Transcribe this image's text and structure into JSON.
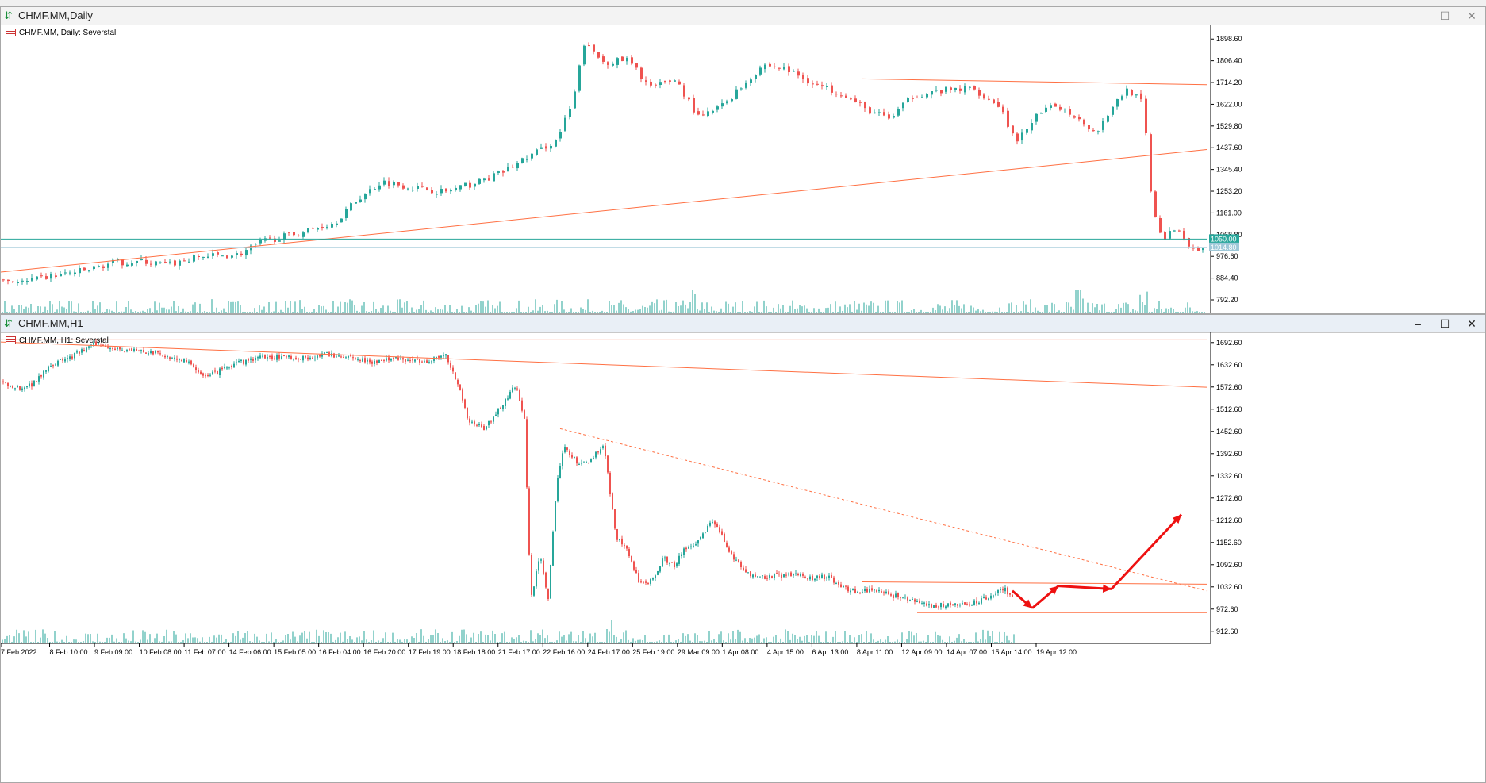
{
  "window_top": {
    "title": "CHMF.MM,Daily",
    "chart_label": "CHMF.MM, Daily:  Severstal"
  },
  "window_bottom": {
    "title": "CHMF.MM,H1",
    "chart_label": "CHMF.MM, H1:  Severstal"
  },
  "controls": {
    "minimize": "–",
    "maximize": "☐",
    "close": "✕"
  },
  "chart_data": [
    {
      "type": "candlestick",
      "title": "CHMF.MM, Daily:  Severstal",
      "ylim": [
        735,
        1960
      ],
      "y_ticks": [
        "1898.60",
        "1806.40",
        "1714.20",
        "1622.00",
        "1529.80",
        "1437.60",
        "1345.40",
        "1253.20",
        "1161.00",
        "1068.80",
        "976.60",
        "884.40",
        "792.20"
      ],
      "price_labels": [
        {
          "value": 1050.0,
          "text": "1050.00",
          "color": "#26a69a"
        },
        {
          "value": 1014.8,
          "text": "1014.80",
          "color": "#9ec8d8"
        }
      ],
      "close_path": [
        [
          0,
          880
        ],
        [
          30,
          865
        ],
        [
          60,
          890
        ],
        [
          110,
          920
        ],
        [
          140,
          950
        ],
        [
          180,
          955
        ],
        [
          210,
          940
        ],
        [
          250,
          975
        ],
        [
          300,
          985
        ],
        [
          330,
          1040
        ],
        [
          380,
          1080
        ],
        [
          420,
          1120
        ],
        [
          450,
          1220
        ],
        [
          480,
          1295
        ],
        [
          520,
          1270
        ],
        [
          560,
          1250
        ],
        [
          600,
          1290
        ],
        [
          630,
          1330
        ],
        [
          660,
          1390
        ],
        [
          700,
          1470
        ],
        [
          720,
          1620
        ],
        [
          735,
          1880
        ],
        [
          760,
          1800
        ],
        [
          790,
          1810
        ],
        [
          820,
          1690
        ],
        [
          850,
          1730
        ],
        [
          880,
          1560
        ],
        [
          910,
          1620
        ],
        [
          940,
          1720
        ],
        [
          960,
          1790
        ],
        [
          990,
          1770
        ],
        [
          1030,
          1700
        ],
        [
          1060,
          1670
        ],
        [
          1090,
          1600
        ],
        [
          1120,
          1560
        ],
        [
          1150,
          1660
        ],
        [
          1190,
          1680
        ],
        [
          1225,
          1690
        ],
        [
          1260,
          1610
        ],
        [
          1280,
          1450
        ],
        [
          1300,
          1560
        ],
        [
          1330,
          1620
        ],
        [
          1360,
          1560
        ],
        [
          1380,
          1500
        ],
        [
          1400,
          1610
        ],
        [
          1420,
          1690
        ],
        [
          1440,
          1620
        ],
        [
          1450,
          1200
        ],
        [
          1465,
          1040
        ],
        [
          1480,
          1100
        ],
        [
          1500,
          1020
        ],
        [
          1515,
          1000
        ]
      ],
      "lines": [
        {
          "from": [
            1085,
            1730
          ],
          "to": [
            1520,
            1705
          ],
          "color": "#ff7043"
        },
        {
          "from": [
            0,
            910
          ],
          "to": [
            1520,
            1430
          ],
          "color": "#ff7043"
        },
        {
          "from": [
            0,
            1050
          ],
          "to": [
            1520,
            1050
          ],
          "color": "#26a69a"
        },
        {
          "from": [
            0,
            1014.8
          ],
          "to": [
            1520,
            1014.8
          ],
          "color": "#9ec8d8"
        }
      ]
    },
    {
      "type": "candlestick",
      "title": "CHMF.MM, H1:  Severstal",
      "ylim": [
        880,
        1720
      ],
      "y_ticks": [
        "1692.60",
        "1632.60",
        "1572.60",
        "1512.60",
        "1452.60",
        "1392.60",
        "1332.60",
        "1272.60",
        "1212.60",
        "1152.60",
        "1092.60",
        "1032.60",
        "972.60",
        "912.60"
      ],
      "x_ticks": [
        "7 Feb 2022",
        "8 Feb 10:00",
        "9 Feb 09:00",
        "10 Feb 08:00",
        "11 Feb 07:00",
        "14 Feb 06:00",
        "15 Feb 05:00",
        "16 Feb 04:00",
        "16 Feb 20:00",
        "17 Feb 19:00",
        "18 Feb 18:00",
        "21 Feb 17:00",
        "22 Feb 16:00",
        "24 Feb 17:00",
        "25 Feb 19:00",
        "29 Mar 09:00",
        "1 Apr 08:00",
        "4 Apr 15:00",
        "6 Apr 13:00",
        "8 Apr 11:00",
        "12 Apr 09:00",
        "14 Apr 07:00",
        "15 Apr 14:00",
        "19 Apr 12:00"
      ],
      "close_path": [
        [
          0,
          1585
        ],
        [
          20,
          1570
        ],
        [
          40,
          1580
        ],
        [
          60,
          1630
        ],
        [
          90,
          1655
        ],
        [
          120,
          1690
        ],
        [
          150,
          1675
        ],
        [
          190,
          1665
        ],
        [
          230,
          1645
        ],
        [
          260,
          1600
        ],
        [
          290,
          1630
        ],
        [
          320,
          1650
        ],
        [
          350,
          1655
        ],
        [
          380,
          1650
        ],
        [
          410,
          1660
        ],
        [
          440,
          1655
        ],
        [
          470,
          1640
        ],
        [
          500,
          1650
        ],
        [
          530,
          1640
        ],
        [
          560,
          1660
        ],
        [
          575,
          1590
        ],
        [
          590,
          1480
        ],
        [
          610,
          1460
        ],
        [
          630,
          1520
        ],
        [
          650,
          1580
        ],
        [
          660,
          1480
        ],
        [
          668,
          1000
        ],
        [
          680,
          1120
        ],
        [
          690,
          1000
        ],
        [
          700,
          1300
        ],
        [
          710,
          1410
        ],
        [
          730,
          1360
        ],
        [
          745,
          1380
        ],
        [
          760,
          1420
        ],
        [
          775,
          1170
        ],
        [
          790,
          1130
        ],
        [
          805,
          1040
        ],
        [
          820,
          1050
        ],
        [
          835,
          1110
        ],
        [
          850,
          1090
        ],
        [
          860,
          1130
        ],
        [
          880,
          1160
        ],
        [
          895,
          1210
        ],
        [
          905,
          1190
        ],
        [
          920,
          1120
        ],
        [
          940,
          1070
        ],
        [
          960,
          1060
        ],
        [
          990,
          1065
        ],
        [
          1020,
          1058
        ],
        [
          1045,
          1060
        ],
        [
          1060,
          1030
        ],
        [
          1080,
          1020
        ],
        [
          1095,
          1025
        ],
        [
          1110,
          1018
        ],
        [
          1140,
          1000
        ],
        [
          1160,
          985
        ],
        [
          1190,
          982
        ],
        [
          1220,
          985
        ],
        [
          1250,
          1010
        ],
        [
          1265,
          1025
        ],
        [
          1275,
          1010
        ]
      ],
      "lines": [
        {
          "from": [
            0,
            1700
          ],
          "to": [
            1520,
            1700
          ],
          "color": "#ff7043"
        },
        {
          "from": [
            0,
            1694
          ],
          "to": [
            1520,
            1572
          ],
          "color": "#ff7043"
        },
        {
          "from": [
            705,
            1460
          ],
          "to": [
            1520,
            1022
          ],
          "color": "#ff7043",
          "dashed": true
        },
        {
          "from": [
            1085,
            1046
          ],
          "to": [
            1520,
            1040
          ],
          "color": "#ff7043"
        },
        {
          "from": [
            1155,
            963
          ],
          "to": [
            1520,
            963
          ],
          "color": "#ff7043"
        }
      ],
      "forecast_arrows": [
        [
          1275,
          1022
        ],
        [
          1300,
          975
        ],
        [
          1333,
          1035
        ],
        [
          1400,
          1027
        ],
        [
          1488,
          1228
        ]
      ]
    }
  ]
}
